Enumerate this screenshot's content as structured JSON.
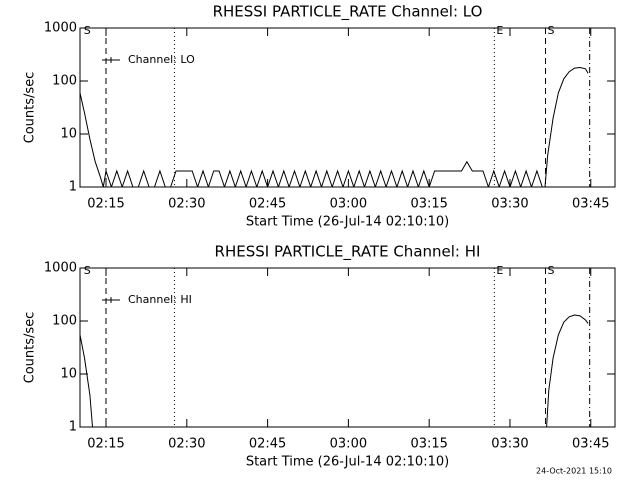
{
  "chart_data": [
    {
      "type": "line",
      "title": "RHESSI PARTICLE_RATE Channel: LO",
      "xlabel": "Start Time (26-Jul-14 02:10:10)",
      "ylabel": "Counts/sec",
      "log_y": true,
      "legend": "upper left",
      "x": [
        130.17,
        131,
        132,
        133,
        134,
        134.5,
        135,
        136,
        137,
        138,
        139,
        140,
        141,
        142,
        143,
        144,
        145,
        146,
        147,
        148,
        149,
        150,
        151,
        152,
        153,
        154,
        155,
        156,
        157,
        158,
        159,
        160,
        161,
        162,
        163,
        164,
        165,
        166,
        167,
        168,
        169,
        170,
        171,
        172,
        173,
        174,
        175,
        176,
        177,
        178,
        179,
        180,
        181,
        182,
        183,
        184,
        185,
        186,
        187,
        188,
        189,
        190,
        191,
        192,
        193,
        194,
        195,
        196,
        197,
        198,
        199,
        200,
        201,
        202,
        203,
        204,
        205,
        206,
        207,
        208,
        209,
        210,
        211,
        212,
        213,
        214,
        215,
        216,
        216.5,
        217,
        218,
        219,
        220,
        221,
        222,
        223,
        224,
        224.5
      ],
      "series": [
        {
          "name": "Channel: LO",
          "color": "#000000",
          "values": [
            60,
            25,
            8,
            3,
            1.5,
            1,
            2,
            1,
            2,
            1,
            2,
            1,
            1,
            2,
            1,
            1,
            2,
            1,
            1,
            2,
            2,
            2,
            2,
            1,
            2,
            1,
            2,
            2,
            1,
            2,
            1,
            2,
            1,
            2,
            1,
            2,
            1,
            2,
            1,
            2,
            1,
            2,
            1,
            2,
            1,
            2,
            1,
            2,
            1,
            2,
            1,
            2,
            1,
            2,
            1,
            2,
            1,
            2,
            1,
            2,
            1,
            2,
            1,
            2,
            1,
            2,
            1,
            2,
            2,
            2,
            2,
            2,
            2,
            3,
            2,
            2,
            2,
            1,
            2,
            1,
            2,
            1,
            2,
            1,
            2,
            1,
            2,
            1,
            1,
            4,
            20,
            60,
            110,
            150,
            175,
            180,
            170,
            140
          ]
        }
      ],
      "xlim": [
        130.17,
        229.5
      ],
      "xticks": [
        {
          "value": 135,
          "label": "02:15"
        },
        {
          "value": 150,
          "label": "02:30"
        },
        {
          "value": 165,
          "label": "02:45"
        },
        {
          "value": 180,
          "label": "03:00"
        },
        {
          "value": 195,
          "label": "03:15"
        },
        {
          "value": 210,
          "label": "03:30"
        },
        {
          "value": 225,
          "label": "03:45"
        }
      ],
      "ylim": [
        1,
        1000
      ],
      "yticks": [
        1,
        10,
        100,
        1000
      ],
      "markers": [
        {
          "x": 130.5,
          "style": "none",
          "label": "S"
        },
        {
          "x": 135,
          "style": "dashed"
        },
        {
          "x": 147.7,
          "style": "dotted"
        },
        {
          "x": 207.1,
          "style": "dotted",
          "label": "E"
        },
        {
          "x": 216.6,
          "style": "dashed",
          "label": "S"
        },
        {
          "x": 224.8,
          "style": "dashdot"
        }
      ]
    },
    {
      "type": "line",
      "title": "RHESSI PARTICLE_RATE Channel: HI",
      "xlabel": "Start Time (26-Jul-14 02:10:10)",
      "ylabel": "Counts/sec",
      "log_y": true,
      "legend": "upper left",
      "x": [
        130.17,
        131,
        132,
        132.5,
        200,
        216.8,
        217.2,
        218,
        219,
        220,
        221,
        222,
        223,
        224,
        224.5
      ],
      "series": [
        {
          "name": "Channel: HI",
          "color": "#000000",
          "values": [
            55,
            20,
            4,
            1,
            null,
            1,
            5,
            20,
            55,
            95,
            120,
            130,
            125,
            105,
            90
          ]
        }
      ],
      "xlim": [
        130.17,
        229.5
      ],
      "xticks": [
        {
          "value": 135,
          "label": "02:15"
        },
        {
          "value": 150,
          "label": "02:30"
        },
        {
          "value": 165,
          "label": "02:45"
        },
        {
          "value": 180,
          "label": "03:00"
        },
        {
          "value": 195,
          "label": "03:15"
        },
        {
          "value": 210,
          "label": "03:30"
        },
        {
          "value": 225,
          "label": "03:45"
        }
      ],
      "ylim": [
        1,
        1000
      ],
      "yticks": [
        1,
        10,
        100,
        1000
      ],
      "markers": [
        {
          "x": 130.5,
          "style": "none",
          "label": "S"
        },
        {
          "x": 135,
          "style": "dashed"
        },
        {
          "x": 147.7,
          "style": "dotted"
        },
        {
          "x": 207.1,
          "style": "dotted",
          "label": "E"
        },
        {
          "x": 216.6,
          "style": "dashed",
          "label": "S"
        },
        {
          "x": 224.8,
          "style": "dashdot"
        }
      ]
    }
  ],
  "footer": "24-Oct-2021 15:10"
}
